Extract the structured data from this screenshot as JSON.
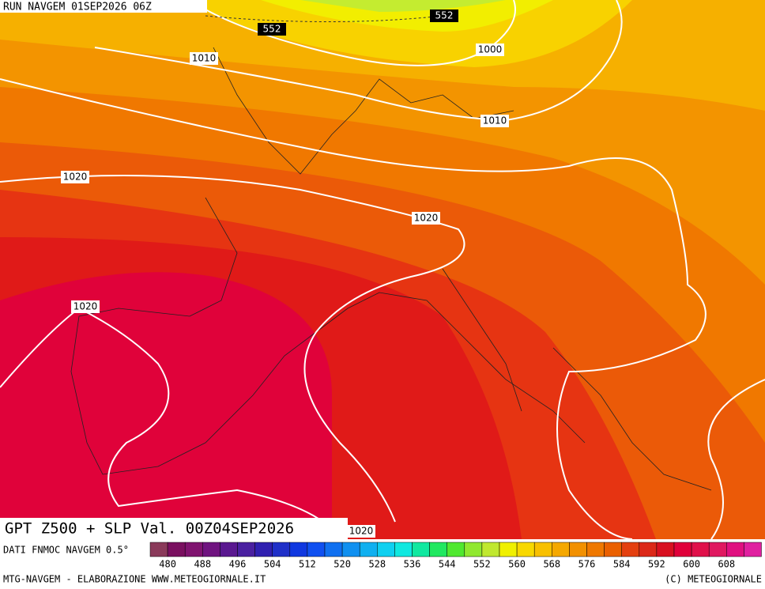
{
  "header": {
    "run": "RUN NAVGEM 01SEP2026 06Z"
  },
  "contour_labels": [
    "552",
    "552",
    "1010",
    "1000",
    "1010",
    "1020",
    "1020",
    "1020",
    "1020"
  ],
  "footer": {
    "title": "GPT Z500 + SLP Val. 00Z04SEP2026",
    "left": "MTG-NAVGEM - ELABORAZIONE WWW.METEOGIORNALE.IT",
    "right": "(C) METEOGIORNALE"
  },
  "colorbar": {
    "source": "DATI FNMOC NAVGEM 0.5°",
    "ticks": [
      480,
      488,
      496,
      504,
      512,
      520,
      528,
      536,
      544,
      552,
      560,
      568,
      576,
      584,
      592,
      600,
      608
    ]
  }
}
